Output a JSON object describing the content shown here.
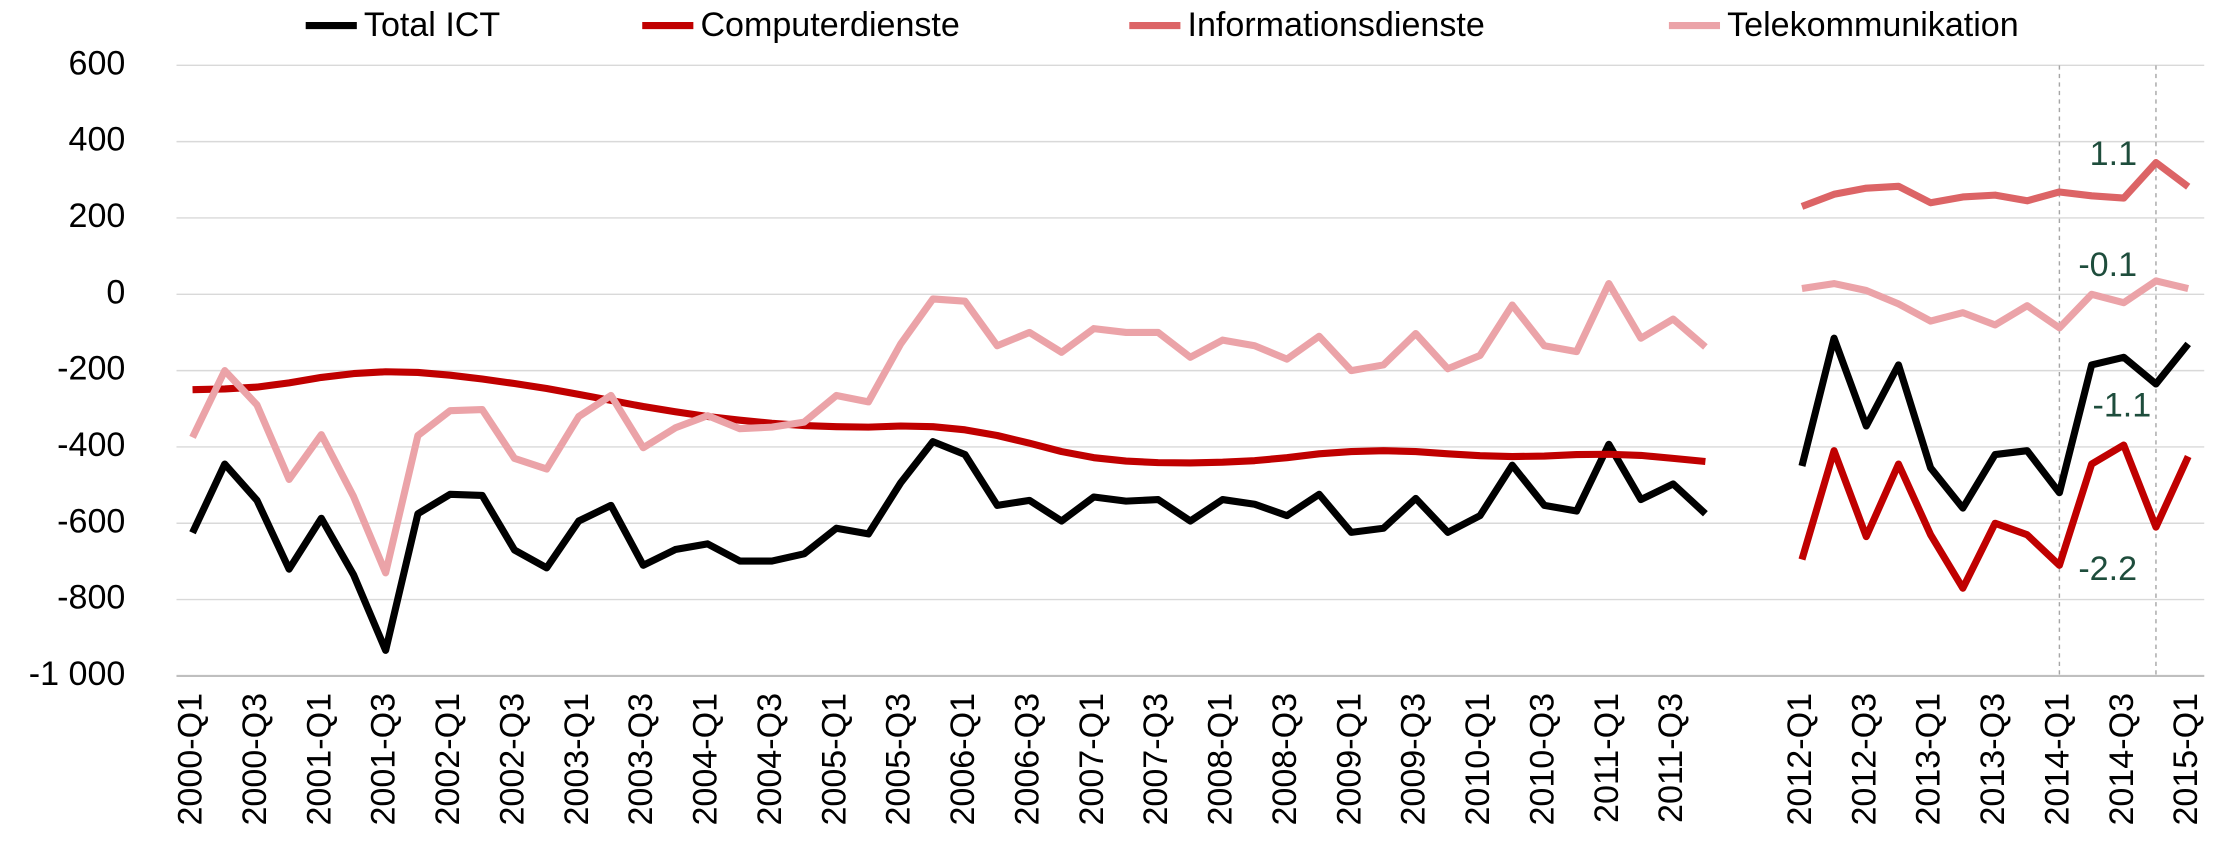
{
  "chart_data": {
    "type": "line",
    "legend": "top",
    "grid": true,
    "ylim": [
      -1000,
      600
    ],
    "yticks": [
      {
        "value": -1000,
        "label": "-1 000"
      },
      -800,
      -600,
      -400,
      -200,
      0,
      200,
      400,
      600
    ],
    "categories": [
      "2000-Q1",
      null,
      "2000-Q3",
      null,
      "2001-Q1",
      null,
      "2001-Q3",
      null,
      "2002-Q1",
      null,
      "2002-Q3",
      null,
      "2003-Q1",
      null,
      "2003-Q3",
      null,
      "2004-Q1",
      null,
      "2004-Q3",
      null,
      "2005-Q1",
      null,
      "2005-Q3",
      null,
      "2006-Q1",
      null,
      "2006-Q3",
      null,
      "2007-Q1",
      null,
      "2007-Q3",
      null,
      "2008-Q1",
      null,
      "2008-Q3",
      null,
      "2009-Q1",
      null,
      "2009-Q3",
      null,
      "2010-Q1",
      null,
      "2010-Q3",
      null,
      "2011-Q1",
      null,
      "2011-Q3",
      null,
      null,
      null,
      "2012-Q1",
      null,
      "2012-Q3",
      null,
      "2013-Q1",
      null,
      "2013-Q3",
      null,
      "2014-Q1",
      null,
      "2014-Q3",
      null,
      "2015-Q1"
    ],
    "series": [
      {
        "name": "Total ICT",
        "color": "#000000",
        "values": [
          -625,
          -445,
          -540,
          -720,
          -587,
          -735,
          -933,
          -575,
          -524,
          -527,
          -670,
          -717,
          -594,
          -553,
          -710,
          -669,
          -654,
          -699,
          -699,
          -680,
          -613,
          -628,
          -494,
          -386,
          -420,
          -553,
          -540,
          -594,
          -531,
          -542,
          -538,
          -594,
          -538,
          -550,
          -580,
          -524,
          -624,
          -613,
          -535,
          -624,
          -580,
          -448,
          -553,
          -568,
          -393,
          -538,
          -497,
          -575,
          null,
          null,
          -450,
          -115,
          -345,
          -185,
          -455,
          -560,
          -420,
          -410,
          -520,
          -185,
          -165,
          -235,
          -130
        ]
      },
      {
        "name": "Computerdienste",
        "color": "#c00000",
        "values": [
          -250,
          -248,
          -243,
          -232,
          -218,
          -208,
          -203,
          -205,
          -212,
          -222,
          -234,
          -247,
          -262,
          -278,
          -294,
          -308,
          -320,
          -330,
          -338,
          -344,
          -347,
          -348,
          -345,
          -347,
          -355,
          -370,
          -390,
          -412,
          -428,
          -437,
          -441,
          -442,
          -440,
          -436,
          -428,
          -418,
          -412,
          -410,
          -412,
          -418,
          -423,
          -425,
          -424,
          -420,
          -419,
          -422,
          -430,
          -438,
          null,
          null,
          -695,
          -410,
          -635,
          -445,
          -630,
          -770,
          -600,
          -630,
          -710,
          -445,
          -395,
          -610,
          -425
        ]
      },
      {
        "name": "Informationsdienste",
        "color": "#dc6466",
        "values": [
          null,
          null,
          null,
          null,
          null,
          null,
          null,
          null,
          null,
          null,
          null,
          null,
          null,
          null,
          null,
          null,
          null,
          null,
          null,
          null,
          null,
          null,
          null,
          null,
          null,
          null,
          null,
          null,
          null,
          null,
          null,
          null,
          null,
          null,
          null,
          null,
          null,
          null,
          null,
          null,
          null,
          null,
          null,
          null,
          null,
          null,
          null,
          null,
          null,
          null,
          230,
          262,
          278,
          283,
          240,
          255,
          260,
          245,
          268,
          258,
          252,
          345,
          282
        ]
      },
      {
        "name": "Telekommunikation",
        "color": "#eba3a8",
        "values": [
          -375,
          -200,
          -290,
          -485,
          -368,
          -530,
          -730,
          -370,
          -305,
          -302,
          -430,
          -458,
          -320,
          -265,
          -402,
          -350,
          -318,
          -352,
          -348,
          -335,
          -265,
          -282,
          -130,
          -12,
          -18,
          -135,
          -100,
          -152,
          -90,
          -100,
          -100,
          -165,
          -120,
          -135,
          -170,
          -110,
          -200,
          -185,
          -103,
          -195,
          -160,
          -28,
          -135,
          -150,
          28,
          -115,
          -65,
          -138,
          null,
          null,
          15,
          28,
          10,
          -25,
          -70,
          -48,
          -80,
          -30,
          -88,
          0,
          -22,
          35,
          15
        ]
      }
    ],
    "annotations": [
      "1.1",
      "-0.1",
      "-1.1",
      "-2.2"
    ]
  }
}
